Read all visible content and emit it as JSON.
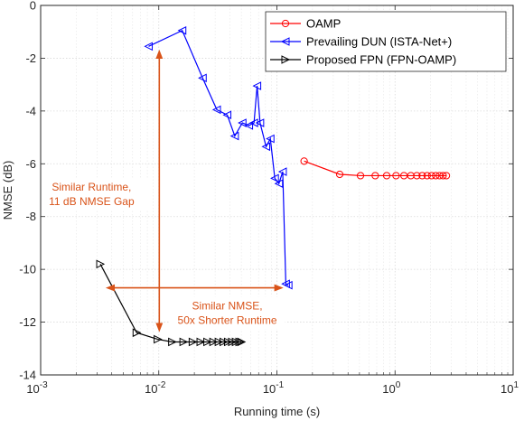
{
  "chart_data": {
    "type": "line",
    "title": "",
    "xlabel": "Running time (s)",
    "ylabel": "NMSE (dB)",
    "xscale": "log",
    "xlim": [
      0.001,
      10
    ],
    "ylim": [
      -14,
      0
    ],
    "grid": true,
    "legend_position": "top-right",
    "x_ticks": [
      {
        "value": 0.001,
        "base": "10",
        "exp": "-3"
      },
      {
        "value": 0.01,
        "base": "10",
        "exp": "-2"
      },
      {
        "value": 0.1,
        "base": "10",
        "exp": "-1"
      },
      {
        "value": 1,
        "base": "10",
        "exp": "0"
      },
      {
        "value": 10,
        "base": "10",
        "exp": "1"
      }
    ],
    "y_ticks": [
      {
        "value": 0,
        "label": "0"
      },
      {
        "value": -2,
        "label": "-2"
      },
      {
        "value": -4,
        "label": "-4"
      },
      {
        "value": -6,
        "label": "-6"
      },
      {
        "value": -8,
        "label": "-8"
      },
      {
        "value": -10,
        "label": "-10"
      },
      {
        "value": -12,
        "label": "-12"
      },
      {
        "value": -14,
        "label": "-14"
      }
    ],
    "series": [
      {
        "name": "OAMP",
        "color": "#ff0000",
        "marker": "circle",
        "x": [
          0.17,
          0.34,
          0.51,
          0.68,
          0.85,
          1.02,
          1.19,
          1.36,
          1.53,
          1.7,
          1.87,
          2.04,
          2.21,
          2.38,
          2.55,
          2.72
        ],
        "y": [
          -5.9,
          -6.4,
          -6.45,
          -6.45,
          -6.45,
          -6.45,
          -6.45,
          -6.45,
          -6.45,
          -6.45,
          -6.45,
          -6.45,
          -6.45,
          -6.45,
          -6.45,
          -6.45
        ]
      },
      {
        "name": "Prevailing DUN (ISTA-Net+)",
        "color": "#0000ff",
        "marker": "triangle-left",
        "x": [
          0.0082,
          0.0158,
          0.0235,
          0.031,
          0.038,
          0.044,
          0.051,
          0.058,
          0.064,
          0.068,
          0.072,
          0.081,
          0.088,
          0.096,
          0.104,
          0.112,
          0.119,
          0.125
        ],
        "y": [
          -1.55,
          -0.95,
          -2.75,
          -3.95,
          -4.15,
          -4.95,
          -4.45,
          -4.55,
          -4.45,
          -3.05,
          -4.45,
          -5.35,
          -5.05,
          -6.55,
          -6.75,
          -6.3,
          -10.55,
          -10.6
        ]
      },
      {
        "name": "Proposed FPN (FPN-OAMP)",
        "color": "#000000",
        "marker": "triangle-right",
        "x": [
          0.0032,
          0.0065,
          0.0098,
          0.013,
          0.0162,
          0.0194,
          0.0226,
          0.0258,
          0.029,
          0.0322,
          0.0354,
          0.0386,
          0.0418,
          0.045,
          0.0482,
          0.05
        ],
        "y": [
          -9.8,
          -12.4,
          -12.65,
          -12.75,
          -12.75,
          -12.75,
          -12.75,
          -12.75,
          -12.75,
          -12.75,
          -12.75,
          -12.75,
          -12.75,
          -12.75,
          -12.75,
          -12.75
        ]
      }
    ],
    "annotations": [
      {
        "type": "double-arrow-vertical",
        "color": "#d95319",
        "x": 0.0101,
        "y_from": -1.7,
        "y_to": -12.35
      },
      {
        "type": "double-arrow-horizontal",
        "color": "#d95319",
        "y": -10.7,
        "x_from": 0.0036,
        "x_to": 0.112
      },
      {
        "type": "text",
        "color": "#d95319",
        "lines": [
          "Similar Runtime,",
          "11 dB NMSE Gap"
        ],
        "x": 0.0027,
        "y": -7.15
      },
      {
        "type": "text",
        "color": "#d95319",
        "lines": [
          "Similar NMSE,",
          "50x Shorter Runtime"
        ],
        "x": 0.038,
        "y": -11.65
      }
    ]
  }
}
